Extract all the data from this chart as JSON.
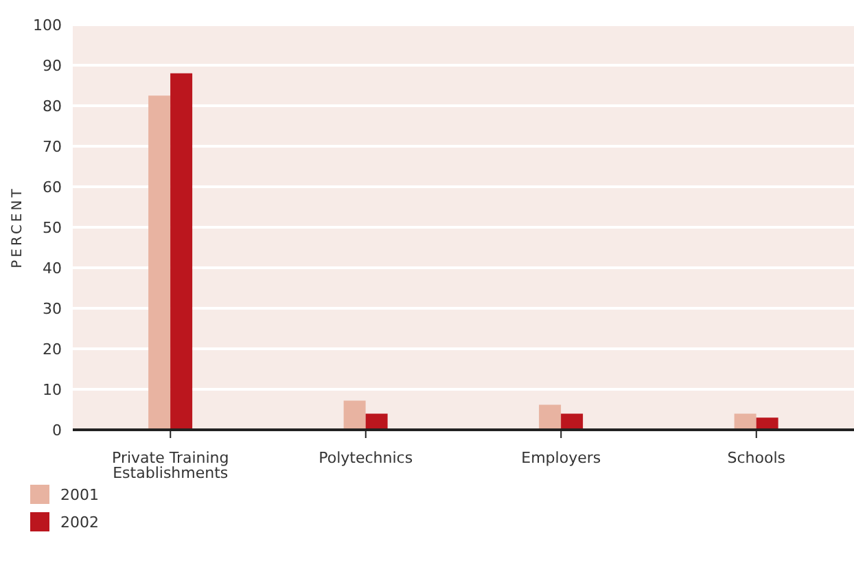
{
  "chart_data": {
    "type": "bar",
    "ylabel": "PERCENT",
    "categories": [
      "Private Training Establishments",
      "Polytechnics",
      "Employers",
      "Schools"
    ],
    "series": [
      {
        "name": "2001",
        "color": "#e8b3a1",
        "values": [
          82.5,
          7.2,
          6.2,
          4
        ]
      },
      {
        "name": "2002",
        "color": "#bb161e",
        "values": [
          88,
          4,
          4,
          3
        ]
      }
    ],
    "ylim": [
      0,
      100
    ],
    "yticks": [
      0,
      10,
      20,
      30,
      40,
      50,
      60,
      70,
      80,
      90,
      100
    ],
    "grid": "y",
    "legend": "bottom left"
  }
}
